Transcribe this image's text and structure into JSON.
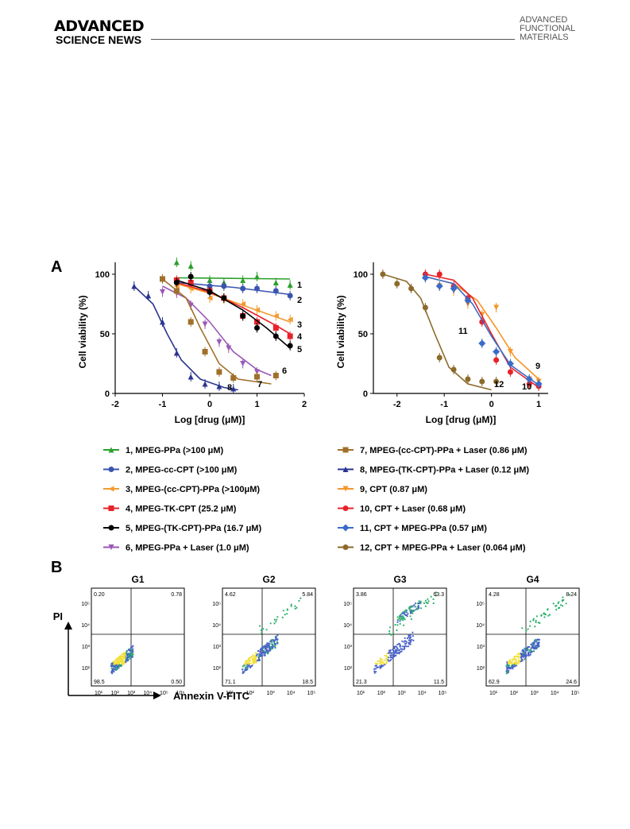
{
  "header": {
    "journal_line1": "ADVANCED",
    "journal_line2": "SCIENCE NEWS",
    "right_line1": "ADVANCED",
    "right_line2": "FUNCTIONAL",
    "right_line3": "MATERIALS"
  },
  "colors": {
    "s1": "#2ca02c",
    "s2": "#3a55b0",
    "s3": "#f39a2e",
    "s4": "#e8222a",
    "s5": "#000000",
    "s6": "#9b59b6",
    "s7": "#a0702a",
    "s8": "#2b3590",
    "s9": "#f5962a",
    "s10": "#e8222a",
    "s11": "#3a6bc8",
    "s12": "#8b6a2a"
  },
  "chart_data": [
    {
      "type": "scatter",
      "panel": "A",
      "xlabel": "Log [drug (μM)]",
      "ylabel": "Cell viability (%)",
      "xlim": [
        -2,
        2
      ],
      "ylim": [
        0,
        110
      ],
      "xticks": [
        "-2",
        "-1",
        "0",
        "1",
        "2"
      ],
      "yticks": [
        "0",
        "50",
        "100"
      ],
      "series": [
        {
          "id": "1",
          "name": "1, MPEG-PPa (>100 μM)",
          "color": "#2ca02c",
          "marker": "triangle-up",
          "points": [
            [
              -0.7,
              110
            ],
            [
              -0.4,
              107
            ],
            [
              0,
              95
            ],
            [
              0.3,
              93
            ],
            [
              0.7,
              95
            ],
            [
              1.0,
              98
            ],
            [
              1.4,
              93
            ],
            [
              1.7,
              91
            ]
          ],
          "fit": [
            [
              -0.7,
              97
            ],
            [
              1.7,
              96
            ]
          ]
        },
        {
          "id": "2",
          "name": "2, MPEG-cc-CPT (>100 μM)",
          "color": "#3a55b0",
          "marker": "circle",
          "points": [
            [
              -0.7,
              93
            ],
            [
              -0.4,
              92
            ],
            [
              0,
              90
            ],
            [
              0.3,
              90
            ],
            [
              0.7,
              88
            ],
            [
              1.0,
              88
            ],
            [
              1.4,
              86
            ],
            [
              1.7,
              82
            ]
          ],
          "fit": [
            [
              -0.7,
              93
            ],
            [
              0.5,
              89
            ],
            [
              1.7,
              83
            ]
          ]
        },
        {
          "id": "3",
          "name": "3, MPEG-(cc-CPT)-PPa (>100μM)",
          "color": "#f39a2e",
          "marker": "triangle-left",
          "points": [
            [
              -0.7,
              90
            ],
            [
              -0.4,
              88
            ],
            [
              0,
              80
            ],
            [
              0.3,
              79
            ],
            [
              0.7,
              75
            ],
            [
              1.0,
              70
            ],
            [
              1.4,
              65
            ],
            [
              1.7,
              62
            ]
          ],
          "fit": [
            [
              -0.7,
              92
            ],
            [
              0,
              84
            ],
            [
              0.7,
              74
            ],
            [
              1.7,
              60
            ]
          ]
        },
        {
          "id": "4",
          "name": "4, MPEG-TK-CPT (25.2 μM)",
          "color": "#e8222a",
          "marker": "square",
          "points": [
            [
              -0.7,
              95
            ],
            [
              -0.4,
              93
            ],
            [
              0,
              86
            ],
            [
              0.3,
              80
            ],
            [
              0.7,
              65
            ],
            [
              1.0,
              60
            ],
            [
              1.4,
              55
            ],
            [
              1.7,
              48
            ]
          ],
          "fit": [
            [
              -0.7,
              93
            ],
            [
              0,
              85
            ],
            [
              0.7,
              72
            ],
            [
              1.4,
              57
            ],
            [
              1.7,
              50
            ]
          ]
        },
        {
          "id": "5",
          "name": "5, MPEG-(TK-CPT)-PPa (16.7 μM)",
          "color": "#000000",
          "marker": "circle",
          "points": [
            [
              -0.7,
              93
            ],
            [
              -0.4,
              98
            ],
            [
              0,
              85
            ],
            [
              0.3,
              80
            ],
            [
              0.7,
              65
            ],
            [
              1.0,
              55
            ],
            [
              1.4,
              48
            ],
            [
              1.7,
              40
            ]
          ],
          "fit": [
            [
              -0.7,
              95
            ],
            [
              0,
              86
            ],
            [
              0.7,
              70
            ],
            [
              1.2,
              55
            ],
            [
              1.7,
              38
            ]
          ]
        },
        {
          "id": "6",
          "name": "6, MPEG-PPa + Laser (1.0 μM)",
          "color": "#9b59b6",
          "marker": "triangle-down",
          "points": [
            [
              -1.0,
              85
            ],
            [
              -0.7,
              84
            ],
            [
              -0.4,
              74
            ],
            [
              -0.1,
              58
            ],
            [
              0.2,
              43
            ],
            [
              0.4,
              38
            ],
            [
              0.7,
              25
            ],
            [
              1.0,
              18
            ]
          ],
          "fit": [
            [
              -1.0,
              90
            ],
            [
              -0.5,
              80
            ],
            [
              0,
              60
            ],
            [
              0.5,
              35
            ],
            [
              1.0,
              20
            ],
            [
              1.3,
              15
            ]
          ]
        },
        {
          "id": "7",
          "name": "7, MPEG-(cc-CPT)-PPa + Laser (0.86 μM)",
          "color": "#a0702a",
          "marker": "square",
          "points": [
            [
              -1.0,
              96
            ],
            [
              -0.7,
              86
            ],
            [
              -0.4,
              60
            ],
            [
              -0.1,
              35
            ],
            [
              0.2,
              18
            ],
            [
              0.5,
              13
            ],
            [
              1.0,
              14
            ],
            [
              1.4,
              15
            ]
          ],
          "fit": [
            [
              -1.0,
              96
            ],
            [
              -0.5,
              80
            ],
            [
              -0.2,
              55
            ],
            [
              0.2,
              25
            ],
            [
              0.6,
              12
            ],
            [
              1.3,
              8
            ]
          ]
        },
        {
          "id": "8",
          "name": "8, MPEG-(TK-CPT)-PPa + Laser (0.12 μM)",
          "color": "#2b3590",
          "marker": "triangle-up",
          "points": [
            [
              -1.6,
              90
            ],
            [
              -1.3,
              82
            ],
            [
              -1.0,
              60
            ],
            [
              -0.7,
              34
            ],
            [
              -0.4,
              14
            ],
            [
              -0.1,
              8
            ],
            [
              0.2,
              6
            ],
            [
              0.5,
              4
            ]
          ],
          "fit": [
            [
              -1.6,
              90
            ],
            [
              -1.2,
              75
            ],
            [
              -0.9,
              50
            ],
            [
              -0.6,
              28
            ],
            [
              -0.2,
              12
            ],
            [
              0.3,
              5
            ],
            [
              0.6,
              3
            ]
          ]
        }
      ],
      "curve_labels": [
        "1",
        "2",
        "3",
        "4",
        "5",
        "6",
        "7",
        "8"
      ]
    },
    {
      "type": "scatter",
      "panel": "A",
      "xlabel": "Log [drug (μM)]",
      "ylabel": "Cell viability (%)",
      "xlim": [
        -2.5,
        1.2
      ],
      "ylim": [
        0,
        110
      ],
      "xticks": [
        "-2",
        "-1",
        "0",
        "1"
      ],
      "yticks": [
        "0",
        "50",
        "100"
      ],
      "series": [
        {
          "id": "9",
          "name": "9, CPT (0.87 μM)",
          "color": "#f5962a",
          "marker": "triangle-down",
          "points": [
            [
              -1.4,
              98
            ],
            [
              -1.1,
              90
            ],
            [
              -0.8,
              86
            ],
            [
              -0.5,
              75
            ],
            [
              -0.2,
              66
            ],
            [
              0.1,
              72
            ],
            [
              0.4,
              35
            ],
            [
              0.8,
              12
            ],
            [
              1.0,
              10
            ]
          ],
          "fit": [
            [
              -1.4,
              98
            ],
            [
              -0.8,
              92
            ],
            [
              -0.3,
              78
            ],
            [
              0.1,
              55
            ],
            [
              0.5,
              30
            ],
            [
              1.0,
              12
            ]
          ]
        },
        {
          "id": "10",
          "name": "10, CPT + Laser (0.68 μM)",
          "color": "#e8222a",
          "marker": "circle",
          "points": [
            [
              -1.4,
              100
            ],
            [
              -1.1,
              100
            ],
            [
              -0.8,
              90
            ],
            [
              -0.5,
              80
            ],
            [
              -0.2,
              60
            ],
            [
              0.1,
              28
            ],
            [
              0.4,
              18
            ],
            [
              0.8,
              8
            ],
            [
              1.0,
              6
            ]
          ],
          "fit": [
            [
              -1.4,
              100
            ],
            [
              -0.8,
              95
            ],
            [
              -0.4,
              80
            ],
            [
              0,
              50
            ],
            [
              0.4,
              22
            ],
            [
              1.0,
              5
            ]
          ]
        },
        {
          "id": "11",
          "name": "11, CPT + MPEG-PPa (0.57 μM)",
          "color": "#3a6bc8",
          "marker": "diamond",
          "points": [
            [
              -1.4,
              97
            ],
            [
              -1.1,
              90
            ],
            [
              -0.8,
              88
            ],
            [
              -0.5,
              78
            ],
            [
              -0.2,
              42
            ],
            [
              0.1,
              35
            ],
            [
              0.4,
              25
            ],
            [
              0.8,
              12
            ],
            [
              1.0,
              8
            ]
          ],
          "fit": [
            [
              -1.4,
              98
            ],
            [
              -0.8,
              92
            ],
            [
              -0.4,
              75
            ],
            [
              0,
              48
            ],
            [
              0.4,
              24
            ],
            [
              1.0,
              7
            ]
          ]
        },
        {
          "id": "12",
          "name": "12, CPT + MPEG-PPa + Laser (0.064 μM)",
          "color": "#8b6a2a",
          "marker": "circle",
          "points": [
            [
              -2.3,
              100
            ],
            [
              -2.0,
              92
            ],
            [
              -1.7,
              88
            ],
            [
              -1.4,
              72
            ],
            [
              -1.1,
              30
            ],
            [
              -0.8,
              20
            ],
            [
              -0.5,
              12
            ],
            [
              -0.2,
              10
            ],
            [
              0.1,
              10
            ]
          ],
          "fit": [
            [
              -2.3,
              100
            ],
            [
              -1.8,
              94
            ],
            [
              -1.5,
              80
            ],
            [
              -1.2,
              50
            ],
            [
              -0.9,
              22
            ],
            [
              -0.5,
              8
            ],
            [
              0,
              3
            ]
          ]
        }
      ],
      "curve_labels": [
        "9",
        "10",
        "11",
        "12"
      ]
    },
    {
      "type": "scatter",
      "panel": "B",
      "xlabel": "Annexin V-FITC",
      "ylabel": "PI",
      "scale": "log",
      "xticks": [
        "10¹",
        "10²",
        "10³",
        "10⁴",
        "10⁵"
      ],
      "yticks": [
        "10²",
        "10³",
        "10⁴",
        "10⁵"
      ],
      "plots": [
        {
          "group": "G1",
          "quadrants": {
            "upper_left": "0.20",
            "upper_right": "0.78",
            "lower_left": "98.5",
            "lower_right": "0.50"
          },
          "xticks": [
            "10¹",
            "10²",
            "10³",
            "10⁴",
            "10⁵",
            "10⁶"
          ]
        },
        {
          "group": "G2",
          "quadrants": {
            "upper_left": "4.62",
            "upper_right": "5.84",
            "lower_left": "71.1",
            "lower_right": "18.5"
          }
        },
        {
          "group": "G3",
          "quadrants": {
            "upper_left": "3.86",
            "upper_right": "63.3",
            "lower_left": "21.3",
            "lower_right": "11.5"
          }
        },
        {
          "group": "G4",
          "quadrants": {
            "upper_left": "4.28",
            "upper_right": "8.24",
            "lower_left": "62.9",
            "lower_right": "24.6"
          }
        }
      ]
    }
  ],
  "panel_labels": {
    "a": "A",
    "b": "B"
  }
}
